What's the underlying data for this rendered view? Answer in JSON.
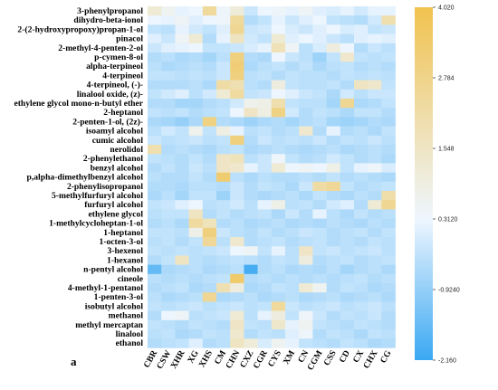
{
  "panel_label": "a",
  "chart_data": {
    "type": "heatmap",
    "rows": [
      "3-phenylpropanol",
      "dihydro-beta-ionol",
      "2-(2-hydroxypropoxy)propan-1-ol",
      "pinacol",
      "2-methyl-4-penten-2-ol",
      "p-cymen-8-ol",
      "alpha-terpineol",
      "4-terpineol",
      "4-terpineol, (-)-",
      "linalool oxide, (z)-",
      "ethylene glycol mono-n-butyl ether",
      "2-heptanol",
      "2-penten-1-ol, (2z)-",
      "isoamyl alcohol",
      "cumic alcohol",
      "nerolidol",
      "2-phenylethanol",
      "benzyl alcohol",
      "p,alpha-dimethylbenzyl alcohol",
      "2-phenylisopropanol",
      "5-methylfurfuryl alcohol",
      "furfuryl alcohol",
      "ethylene glycol",
      "1-methylcycloheptan-1-ol",
      "1-heptanol",
      "1-octen-3-ol",
      "3-hexenol",
      "1-hexanol",
      "n-pentyl alcohol",
      "cineole",
      "4-methyl-1-pentanol",
      "1-penten-3-ol",
      "isobutyl alcohol",
      "methanol",
      "methyl mercaptan",
      "linalool",
      "ethanol"
    ],
    "columns": [
      "CBR",
      "CSW",
      "XHR",
      "XG",
      "XHS",
      "CM",
      "CHN",
      "CXZ",
      "CGR",
      "CYS",
      "XM",
      "CN",
      "CGM",
      "CSS",
      "CD",
      "CX",
      "CHX",
      "CG"
    ],
    "values": [
      [
        1.2,
        0.6,
        0.2,
        0.3,
        2.4,
        0.4,
        1.1,
        -0.2,
        0.3,
        0.4,
        0.2,
        0.5,
        0.1,
        0.0,
        0.2,
        -0.1,
        0.2,
        0.2
      ],
      [
        0.3,
        0.2,
        0.5,
        0.1,
        0.3,
        0.4,
        2.4,
        -0.5,
        -0.3,
        0.2,
        -0.2,
        0.1,
        0.3,
        -0.3,
        -0.4,
        -0.5,
        -0.1,
        2.0
      ],
      [
        -0.3,
        -0.4,
        0.2,
        -0.1,
        -0.3,
        0.1,
        2.6,
        -0.2,
        -0.1,
        0.3,
        0.0,
        -0.2,
        0.1,
        0.3,
        0.0,
        0.1,
        -0.3,
        -0.2
      ],
      [
        0.1,
        -0.2,
        0.5,
        1.2,
        -0.5,
        0.2,
        1.6,
        -0.1,
        -0.3,
        1.2,
        0.1,
        0.3,
        0.1,
        -0.2,
        -0.4,
        0.1,
        0.2,
        0.1
      ],
      [
        -0.2,
        0.1,
        0.2,
        0.3,
        -0.3,
        -0.3,
        -0.2,
        0.0,
        0.2,
        1.8,
        0.5,
        -0.4,
        0.0,
        1.0,
        0.3,
        -0.5,
        -0.2,
        -0.4
      ],
      [
        -0.5,
        -0.4,
        -0.6,
        -0.5,
        -0.7,
        -0.4,
        3.0,
        -0.5,
        -0.6,
        0.3,
        -0.2,
        -0.4,
        -0.8,
        -0.3,
        1.3,
        -0.3,
        -0.4,
        -0.3
      ],
      [
        -0.4,
        -0.6,
        -0.5,
        -0.4,
        -0.5,
        -0.2,
        3.2,
        -0.6,
        -0.4,
        -0.3,
        -0.5,
        -0.3,
        -0.6,
        -0.4,
        -0.3,
        -0.5,
        -0.4,
        -0.5
      ],
      [
        -0.3,
        -0.3,
        -0.4,
        -0.3,
        -0.4,
        -0.2,
        3.0,
        -0.4,
        -0.3,
        -0.5,
        -0.3,
        -0.4,
        -0.4,
        -0.5,
        -0.3,
        -0.4,
        -0.3,
        -0.4
      ],
      [
        -0.5,
        -0.5,
        -0.5,
        -0.4,
        -0.6,
        2.2,
        1.9,
        -0.4,
        -0.5,
        1.0,
        -0.3,
        -0.4,
        -0.4,
        -0.3,
        -0.5,
        1.6,
        1.4,
        -0.3
      ],
      [
        -0.3,
        -0.1,
        0.1,
        -0.4,
        -0.1,
        1.2,
        2.3,
        -0.3,
        -0.2,
        0.3,
        0.1,
        -0.2,
        -0.3,
        -0.6,
        -0.1,
        -0.4,
        -0.2,
        -0.2
      ],
      [
        -0.5,
        -0.5,
        -0.7,
        -0.7,
        -0.5,
        -0.4,
        -0.1,
        0.7,
        0.8,
        2.0,
        -0.3,
        -0.4,
        -0.4,
        -0.7,
        2.6,
        -0.6,
        -0.5,
        -0.3
      ],
      [
        -0.3,
        -0.4,
        -0.3,
        -0.5,
        -0.4,
        -0.3,
        0.3,
        1.5,
        0.9,
        2.9,
        -0.1,
        -0.5,
        -0.3,
        -0.4,
        -0.6,
        -0.3,
        -0.3,
        -0.5
      ],
      [
        -0.6,
        -0.7,
        -0.9,
        -0.6,
        2.9,
        -0.5,
        -0.6,
        -0.8,
        -0.6,
        -0.5,
        -0.7,
        -0.5,
        -0.4,
        -0.7,
        -0.8,
        -0.7,
        -0.5,
        -0.6
      ],
      [
        -0.4,
        -0.1,
        -0.3,
        0.7,
        -0.3,
        0.9,
        0.2,
        -0.4,
        -0.3,
        -0.5,
        -0.4,
        1.3,
        -0.5,
        0.2,
        -0.5,
        -0.4,
        -0.6,
        -0.3
      ],
      [
        -0.2,
        -0.4,
        -0.3,
        -0.2,
        -0.4,
        -0.3,
        3.0,
        -0.5,
        -0.2,
        -0.4,
        -0.3,
        -0.4,
        -0.2,
        -0.5,
        -0.3,
        -0.4,
        -0.2,
        -0.4
      ],
      [
        2.0,
        -0.5,
        -0.4,
        -0.5,
        -0.6,
        -0.4,
        -0.3,
        -0.6,
        -0.5,
        -0.4,
        -0.5,
        -0.6,
        -0.5,
        -0.4,
        -0.6,
        -0.5,
        -0.4,
        -0.5
      ],
      [
        -0.3,
        -0.4,
        -0.5,
        -0.3,
        -0.5,
        1.5,
        1.7,
        -0.4,
        -0.2,
        0.4,
        -0.3,
        -0.5,
        -0.4,
        -0.1,
        -0.3,
        -0.5,
        -0.4,
        -0.6
      ],
      [
        -0.5,
        -0.3,
        -0.5,
        -0.2,
        -0.4,
        1.5,
        1.3,
        0.2,
        -0.2,
        1.2,
        0.3,
        0.5,
        0.3,
        0.8,
        -0.3,
        0.2,
        0.4,
        0.0
      ],
      [
        -0.4,
        -0.5,
        -0.5,
        -0.3,
        -0.5,
        3.3,
        -0.4,
        -0.6,
        -0.4,
        -0.5,
        -0.5,
        -0.4,
        -0.5,
        -0.3,
        -0.5,
        -0.4,
        -0.5,
        -0.6
      ],
      [
        -0.5,
        -0.5,
        -0.6,
        -0.4,
        -0.4,
        -0.5,
        -0.2,
        -0.5,
        -0.3,
        -0.4,
        -0.6,
        -0.2,
        2.2,
        2.5,
        -0.3,
        -0.5,
        -0.4,
        -0.3
      ],
      [
        -0.6,
        -0.4,
        -0.7,
        -0.3,
        -0.3,
        -0.8,
        -0.2,
        -0.5,
        -0.6,
        -0.5,
        -0.4,
        -0.6,
        -0.3,
        -0.5,
        -0.6,
        -0.4,
        -0.5,
        2.1
      ],
      [
        -0.3,
        -0.2,
        0.1,
        0.3,
        -0.4,
        -0.3,
        -0.1,
        -0.4,
        0.2,
        0.8,
        -0.4,
        -0.3,
        -0.5,
        -0.1,
        0.1,
        -0.5,
        1.2,
        2.6
      ],
      [
        -0.4,
        -0.3,
        -0.3,
        1.6,
        -0.5,
        -0.3,
        -0.5,
        -0.4,
        -0.3,
        -0.6,
        -0.2,
        -0.5,
        0.2,
        -0.4,
        -0.6,
        -0.3,
        -0.5,
        -0.4
      ],
      [
        -0.5,
        -0.4,
        -0.6,
        2.3,
        1.7,
        -0.5,
        -0.4,
        -0.6,
        -0.5,
        -0.4,
        -0.6,
        -0.5,
        -0.6,
        -0.4,
        -0.5,
        -0.6,
        -0.4,
        -0.5
      ],
      [
        -0.3,
        -0.3,
        -0.4,
        0.8,
        3.0,
        -0.2,
        -0.4,
        -0.5,
        -0.3,
        -0.5,
        -0.4,
        -0.2,
        -0.3,
        -0.5,
        -0.4,
        -0.3,
        -0.5,
        -0.3
      ],
      [
        -0.4,
        -0.3,
        -0.5,
        -0.3,
        2.5,
        -0.4,
        1.3,
        -0.5,
        -0.4,
        -0.3,
        -0.5,
        -0.4,
        -0.3,
        -0.5,
        -0.4,
        -0.5,
        -0.3,
        -0.4
      ],
      [
        -0.3,
        -0.4,
        -0.3,
        -0.4,
        -0.3,
        -0.2,
        0.3,
        0.5,
        -0.3,
        0.2,
        -0.4,
        1.5,
        -0.3,
        -0.2,
        -0.4,
        -0.3,
        -0.2,
        -0.4
      ],
      [
        -0.5,
        -0.3,
        1.6,
        -0.4,
        -0.5,
        -0.4,
        -0.3,
        -0.4,
        -0.5,
        -0.3,
        -0.4,
        1.0,
        -0.5,
        -0.4,
        -0.3,
        -0.5,
        -0.4,
        -0.3
      ],
      [
        -1.6,
        -0.6,
        -0.5,
        -0.4,
        -0.6,
        -0.5,
        -0.4,
        -2.0,
        -0.5,
        -0.4,
        -0.6,
        -0.5,
        -0.6,
        -0.4,
        -0.7,
        -0.5,
        -0.4,
        -0.6
      ],
      [
        -0.4,
        -0.5,
        -0.4,
        -0.5,
        -0.4,
        -0.3,
        3.4,
        -0.5,
        -0.4,
        -0.5,
        -0.4,
        -0.5,
        -0.4,
        -0.5,
        -0.4,
        -0.3,
        -0.5,
        -0.4
      ],
      [
        -0.5,
        -0.4,
        -0.3,
        -0.6,
        -0.5,
        1.9,
        1.0,
        -0.6,
        -0.5,
        -0.3,
        -0.4,
        1.2,
        0.6,
        -0.5,
        -0.3,
        -0.4,
        -0.6,
        -0.5
      ],
      [
        -0.4,
        -0.6,
        -0.5,
        -0.4,
        2.6,
        -0.6,
        -0.5,
        -0.4,
        -0.6,
        -0.5,
        -0.4,
        -0.6,
        -0.5,
        -0.4,
        -0.6,
        -0.5,
        -0.4,
        -0.6
      ],
      [
        -0.3,
        -0.4,
        -0.3,
        -0.2,
        -0.4,
        -0.3,
        -0.2,
        -0.4,
        -0.3,
        2.4,
        -0.2,
        -0.4,
        -0.3,
        -0.2,
        -0.4,
        -0.3,
        -0.2,
        -0.4
      ],
      [
        -0.5,
        0.3,
        0.5,
        -0.4,
        -0.3,
        -0.2,
        1.2,
        -0.4,
        0.2,
        1.0,
        -0.3,
        0.4,
        -0.2,
        -0.5,
        -0.3,
        -0.4,
        -0.2,
        -0.5
      ],
      [
        -0.3,
        -0.4,
        -0.5,
        -0.3,
        -0.4,
        -0.5,
        1.5,
        -0.3,
        -0.4,
        1.4,
        0.2,
        0.6,
        -0.3,
        -0.4,
        -0.5,
        -0.3,
        -0.4,
        -0.5
      ],
      [
        -0.4,
        -0.3,
        -0.6,
        -0.5,
        -0.3,
        -0.4,
        1.3,
        -0.5,
        -0.3,
        -0.4,
        0.1,
        0.4,
        -0.5,
        -0.3,
        -0.4,
        -0.6,
        -0.3,
        -0.4
      ],
      [
        -0.5,
        -0.4,
        -0.3,
        0.1,
        -0.5,
        -0.4,
        1.6,
        1.1,
        0.0,
        0.6,
        0.2,
        -0.3,
        -0.4,
        -0.5,
        -0.3,
        -0.4,
        -0.6,
        -0.5
      ]
    ],
    "colorbar": {
      "ticks": [
        4.02,
        2.784,
        1.548,
        0.312,
        -0.924,
        -2.16
      ],
      "labels": [
        "4.020",
        "2.784",
        "1.548",
        "0.3120",
        "-0.9240",
        "-2.160"
      ],
      "min": -2.16,
      "max": 4.02
    },
    "colors": {
      "low": "#3aa8f2",
      "mid": "#eef6fe",
      "high": "#f0c24f"
    }
  }
}
